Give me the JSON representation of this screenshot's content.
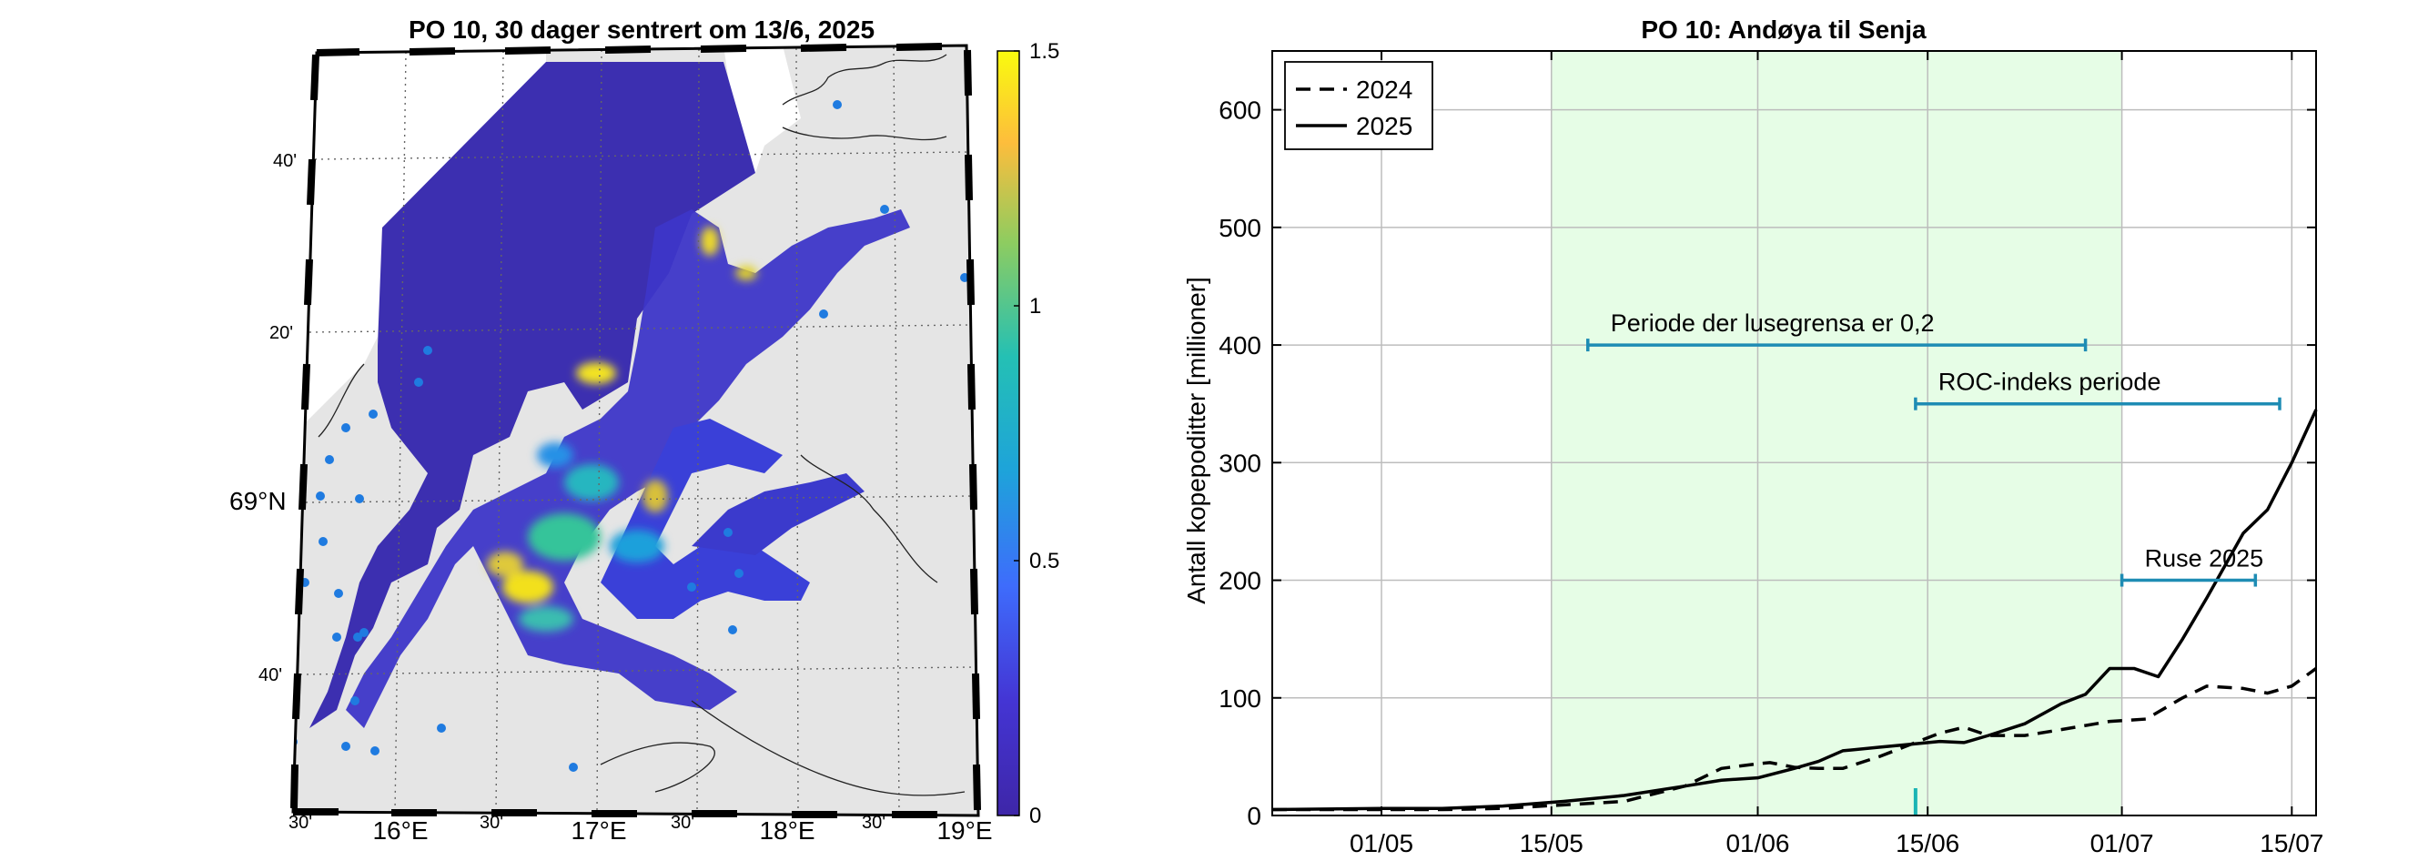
{
  "map_panel": {
    "title": "PO 10, 30 dager sentrert om 13/6, 2025",
    "lat_labels": [
      "40'",
      "20'",
      "69°N",
      "40'"
    ],
    "lon_labels": [
      "30'",
      "16°E",
      "30'",
      "17°E",
      "30'",
      "18°E",
      "30'",
      "19°E"
    ],
    "colorbar": {
      "ticks": [
        "1.5",
        "1",
        "0.5",
        "0"
      ],
      "colors": [
        "#f9fb0e",
        "#fdbd3c",
        "#48cb86",
        "#1ea3da",
        "#3c6cfc",
        "#3f31b8",
        "#3e26a8"
      ]
    },
    "colors": {
      "land": "#e5e5e5",
      "sea_outside": "#ffffff",
      "station_dot": "#1f7be0"
    }
  },
  "chart_data": {
    "type": "line",
    "title": "PO 10: Andøya til Senja",
    "xlabel": "",
    "ylabel": "Antall kopepoditter [millioner]",
    "ylim": [
      0,
      650
    ],
    "y_ticks": [
      0,
      100,
      200,
      300,
      400,
      500,
      600
    ],
    "x_ticks": [
      "01/05",
      "15/05",
      "01/06",
      "15/06",
      "01/07",
      "15/07"
    ],
    "xlim_days": [
      -9,
      77
    ],
    "grid": true,
    "legend_position": "top-left",
    "shaded_period": {
      "start": "15/05",
      "end": "01/07",
      "color": "#e6fde6"
    },
    "series": [
      {
        "name": "2024",
        "style": "dashed",
        "x": [
          -9,
          0,
          5,
          10,
          15,
          20,
          25,
          28,
          31,
          32,
          34,
          36,
          38,
          41,
          43,
          46,
          48,
          50,
          53,
          56,
          60,
          63,
          64,
          66,
          68,
          71,
          73,
          75,
          77
        ],
        "y": [
          5,
          5,
          5,
          6,
          9,
          12,
          25,
          40,
          44,
          45,
          41,
          40,
          40,
          50,
          58,
          70,
          75,
          68,
          68,
          73,
          80,
          82,
          88,
          100,
          110,
          108,
          104,
          110,
          125
        ]
      },
      {
        "name": "2025",
        "style": "solid",
        "x": [
          -9,
          0,
          5,
          10,
          15,
          20,
          25,
          28,
          31,
          34,
          36,
          38,
          41,
          43,
          46,
          48,
          50,
          53,
          56,
          58,
          60,
          62,
          64,
          66,
          68,
          71,
          73,
          75,
          77
        ],
        "y": [
          5,
          6,
          6,
          8,
          12,
          17,
          25,
          30,
          32,
          40,
          46,
          55,
          58,
          60,
          63,
          62,
          68,
          78,
          95,
          103,
          125,
          125,
          118,
          150,
          185,
          240,
          260,
          300,
          345
        ]
      }
    ],
    "annotations": [
      {
        "label": "Periode der lusegrensa er 0,2",
        "y": 400,
        "x_start": 17,
        "x_end": 58
      },
      {
        "label": "ROC-indeks periode",
        "y": 350,
        "x_start": 44,
        "x_end": 74
      },
      {
        "label": "Ruse 2025",
        "y": 200,
        "x_start": 61,
        "x_end": 72
      }
    ],
    "marker_day": 44,
    "line_color_annotations": "#1e8cb4"
  }
}
